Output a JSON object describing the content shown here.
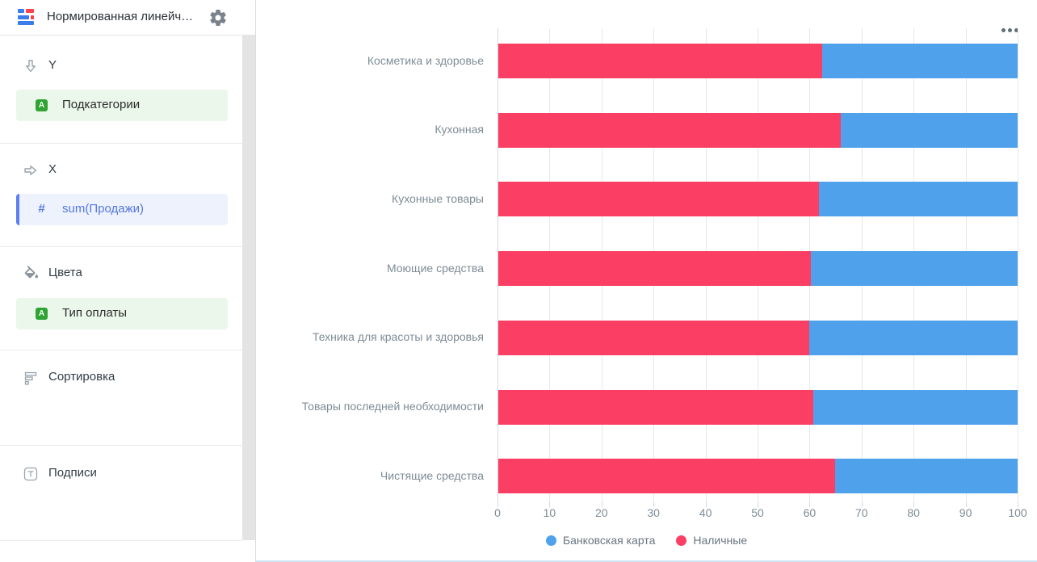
{
  "header": {
    "title": "Нормированная линейч…",
    "logo_icon": "normalized-bar-chart-logo",
    "settings_icon": "gear"
  },
  "sidebar": {
    "sections": [
      {
        "id": "y",
        "label": "Y",
        "icon": "arrow-down-icon",
        "fields": [
          {
            "name": "Подкатегории",
            "badge": "A",
            "scheme": "green"
          }
        ]
      },
      {
        "id": "x",
        "label": "X",
        "icon": "arrow-right-icon",
        "fields": [
          {
            "name": "sum(Продажи)",
            "badge": "#",
            "scheme": "blue"
          }
        ]
      },
      {
        "id": "colors",
        "label": "Цвета",
        "icon": "paint-bucket-icon",
        "fields": [
          {
            "name": "Тип оплаты",
            "badge": "A",
            "scheme": "green"
          }
        ]
      },
      {
        "id": "sort",
        "label": "Сортировка",
        "icon": "sort-icon",
        "fields": []
      },
      {
        "id": "labels",
        "label": "Подписи",
        "icon": "text-icon",
        "fields": []
      }
    ]
  },
  "chart_data": {
    "type": "bar",
    "orientation": "horizontal",
    "normalized": true,
    "title": "",
    "xlabel": "",
    "ylabel": "",
    "xlim": [
      0,
      100
    ],
    "grid": true,
    "categories": [
      "Косметика и здоровье",
      "Кухонная",
      "Кухонные товары",
      "Моющие средства",
      "Техника для красоты и здоровья",
      "Товары последней необходимости",
      "Чистящие средства"
    ],
    "series": [
      {
        "name": "Наличные",
        "color": "#fb3e63",
        "values": [
          62.4,
          65.9,
          61.8,
          60.2,
          59.8,
          60.6,
          64.9
        ]
      },
      {
        "name": "Банковская карта",
        "color": "#4fa1ec",
        "values": [
          37.6,
          34.1,
          38.2,
          39.8,
          40.2,
          39.4,
          35.1
        ]
      }
    ],
    "x_ticks": [
      0,
      10,
      20,
      30,
      40,
      50,
      60,
      70,
      80,
      90,
      100
    ],
    "legend_position": "bottom",
    "legend": [
      {
        "label": "Банковская карта",
        "color": "#4fa1ec"
      },
      {
        "label": "Наличные",
        "color": "#fb3e63"
      }
    ]
  },
  "colors": {
    "cash": "#fb3e63",
    "card": "#4fa1ec",
    "grid": "#e8e8e8",
    "axis": "#d2d8dd",
    "chart_text": "#7e8c96",
    "green_badge": "#2fa433",
    "blue_accent": "#5b7ff2"
  }
}
